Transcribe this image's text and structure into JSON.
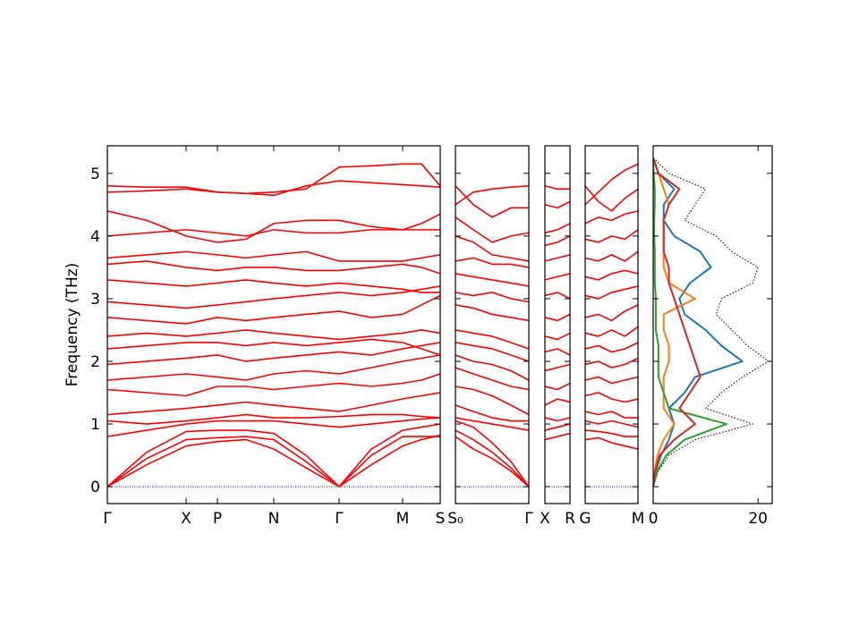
{
  "chart_data": [
    {
      "type": "line",
      "ylabel": "Frequency (THz)",
      "color": "#ff0000",
      "hline": 0,
      "hline_color": "#0000ff",
      "xlim": [
        0,
        3.72
      ],
      "ylim": [
        -0.27,
        5.44
      ],
      "yticks": [
        0,
        1,
        2,
        3,
        4,
        5
      ],
      "show_ytick_labels": true,
      "xticks": [
        {
          "value": 0,
          "label": "Γ"
        },
        {
          "value": 0.88,
          "label": "X"
        },
        {
          "value": 1.23,
          "label": "P"
        },
        {
          "value": 1.86,
          "label": "N"
        },
        {
          "value": 2.59,
          "label": "Γ"
        },
        {
          "value": 3.3,
          "label": "M"
        },
        {
          "value": 3.72,
          "label": "S"
        }
      ],
      "x": [
        0,
        0.44,
        0.88,
        1.23,
        1.55,
        1.86,
        2.22,
        2.59,
        2.95,
        3.3,
        3.51,
        3.72
      ],
      "series": [
        {
          "values": [
            0,
            0.45,
            0.75,
            0.78,
            0.8,
            0.75,
            0.4,
            0,
            0.5,
            0.8,
            0.8,
            0.8
          ]
        },
        {
          "values": [
            0,
            0.35,
            0.65,
            0.72,
            0.75,
            0.6,
            0.3,
            0,
            0.35,
            0.65,
            0.75,
            0.82
          ]
        },
        {
          "values": [
            0,
            0.55,
            0.88,
            0.9,
            0.9,
            0.85,
            0.5,
            0,
            0.6,
            0.9,
            0.95,
            1.0
          ]
        },
        {
          "values": [
            0.8,
            0.9,
            1.0,
            1.05,
            1.05,
            1.05,
            1.0,
            0.95,
            1.0,
            1.05,
            1.08,
            1.1
          ]
        },
        {
          "values": [
            1.05,
            1.0,
            1.05,
            1.1,
            1.15,
            1.1,
            1.1,
            1.12,
            1.15,
            1.15,
            1.12,
            1.1
          ]
        },
        {
          "values": [
            1.15,
            1.2,
            1.25,
            1.3,
            1.35,
            1.3,
            1.25,
            1.2,
            1.3,
            1.4,
            1.45,
            1.5
          ]
        },
        {
          "values": [
            1.55,
            1.5,
            1.45,
            1.6,
            1.6,
            1.55,
            1.6,
            1.65,
            1.6,
            1.65,
            1.7,
            1.8
          ]
        },
        {
          "values": [
            1.7,
            1.75,
            1.8,
            1.75,
            1.7,
            1.8,
            1.85,
            1.8,
            1.9,
            2.0,
            2.05,
            2.1
          ]
        },
        {
          "values": [
            1.95,
            2.0,
            2.05,
            2.1,
            2.0,
            2.05,
            2.1,
            2.15,
            2.1,
            2.2,
            2.25,
            2.3
          ]
        },
        {
          "values": [
            2.2,
            2.25,
            2.3,
            2.3,
            2.25,
            2.3,
            2.25,
            2.3,
            2.35,
            2.3,
            2.2,
            2.1
          ]
        },
        {
          "values": [
            2.4,
            2.45,
            2.4,
            2.45,
            2.5,
            2.45,
            2.4,
            2.35,
            2.4,
            2.45,
            2.5,
            2.45
          ]
        },
        {
          "values": [
            2.7,
            2.65,
            2.6,
            2.7,
            2.65,
            2.7,
            2.75,
            2.8,
            2.7,
            2.75,
            2.9,
            3.05
          ]
        },
        {
          "values": [
            2.95,
            2.9,
            2.85,
            2.9,
            2.95,
            3.0,
            3.05,
            3.1,
            3.05,
            3.1,
            3.15,
            3.2
          ]
        },
        {
          "values": [
            3.3,
            3.25,
            3.2,
            3.25,
            3.3,
            3.25,
            3.2,
            3.25,
            3.2,
            3.15,
            3.1,
            3.1
          ]
        },
        {
          "values": [
            3.55,
            3.6,
            3.5,
            3.45,
            3.5,
            3.5,
            3.45,
            3.45,
            3.5,
            3.55,
            3.5,
            3.4
          ]
        },
        {
          "values": [
            3.65,
            3.7,
            3.75,
            3.7,
            3.65,
            3.7,
            3.75,
            3.6,
            3.6,
            3.6,
            3.65,
            3.7
          ]
        },
        {
          "values": [
            4.0,
            4.05,
            4.1,
            4.05,
            4.0,
            4.1,
            4.05,
            4.05,
            4.1,
            4.1,
            4.2,
            4.35
          ]
        },
        {
          "values": [
            4.4,
            4.25,
            4.0,
            3.9,
            3.95,
            4.2,
            4.25,
            4.25,
            4.15,
            4.1,
            4.1,
            4.1
          ]
        },
        {
          "values": [
            4.7,
            4.72,
            4.75,
            4.7,
            4.68,
            4.65,
            4.8,
            4.88,
            4.85,
            4.82,
            4.8,
            4.78
          ]
        },
        {
          "values": [
            4.8,
            4.78,
            4.78,
            4.7,
            4.68,
            4.7,
            4.75,
            5.1,
            5.12,
            5.15,
            5.15,
            4.8
          ]
        }
      ]
    },
    {
      "type": "line",
      "color": "#ff0000",
      "hline": 0,
      "hline_color": "#0000ff",
      "xlim": [
        0,
        0.82
      ],
      "ylim": [
        -0.27,
        5.44
      ],
      "yticks": [
        0,
        1,
        2,
        3,
        4,
        5
      ],
      "show_ytick_labels": false,
      "xticks": [
        {
          "value": 0,
          "label": "S₀"
        },
        {
          "value": 0.82,
          "label": "Γ"
        }
      ],
      "x": [
        0,
        0.2,
        0.41,
        0.62,
        0.82
      ],
      "series": [
        {
          "values": [
            0.8,
            0.6,
            0.45,
            0.25,
            0
          ]
        },
        {
          "values": [
            0.9,
            0.75,
            0.55,
            0.3,
            0
          ]
        },
        {
          "values": [
            1.05,
            0.95,
            0.7,
            0.4,
            0
          ]
        },
        {
          "values": [
            1.1,
            1.05,
            1.0,
            0.95,
            0.9
          ]
        },
        {
          "values": [
            1.3,
            1.2,
            1.1,
            1.05,
            1.05
          ]
        },
        {
          "values": [
            1.6,
            1.55,
            1.45,
            1.3,
            1.15
          ]
        },
        {
          "values": [
            1.9,
            1.8,
            1.7,
            1.6,
            1.55
          ]
        },
        {
          "values": [
            2.1,
            2.0,
            1.95,
            1.85,
            1.7
          ]
        },
        {
          "values": [
            2.3,
            2.25,
            2.2,
            2.1,
            2.0
          ]
        },
        {
          "values": [
            2.5,
            2.45,
            2.4,
            2.3,
            2.2
          ]
        },
        {
          "values": [
            2.9,
            2.85,
            2.75,
            2.7,
            2.65
          ]
        },
        {
          "values": [
            3.1,
            3.05,
            3.1,
            3.0,
            2.95
          ]
        },
        {
          "values": [
            3.4,
            3.35,
            3.3,
            3.25,
            3.2
          ]
        },
        {
          "values": [
            3.6,
            3.65,
            3.55,
            3.55,
            3.5
          ]
        },
        {
          "values": [
            4.0,
            3.9,
            3.7,
            3.65,
            3.6
          ]
        },
        {
          "values": [
            4.3,
            4.1,
            3.9,
            4.0,
            4.05
          ]
        },
        {
          "values": [
            4.8,
            4.5,
            4.3,
            4.45,
            4.45
          ]
        },
        {
          "values": [
            4.5,
            4.7,
            4.75,
            4.78,
            4.8
          ]
        }
      ]
    },
    {
      "type": "line",
      "color": "#ff0000",
      "hline": 0,
      "hline_color": "#0000ff",
      "xlim": [
        0,
        0.14
      ],
      "ylim": [
        -0.27,
        5.44
      ],
      "yticks": [
        0,
        1,
        2,
        3,
        4,
        5
      ],
      "show_ytick_labels": false,
      "xticks": [
        {
          "value": 0,
          "label": "X"
        },
        {
          "value": 0.14,
          "label": "R"
        }
      ],
      "x": [
        0,
        0.07,
        0.14
      ],
      "series": [
        {
          "values": [
            0.75,
            0.8,
            0.85
          ]
        },
        {
          "values": [
            0.9,
            0.95,
            1.0
          ]
        },
        {
          "values": [
            1.1,
            1.05,
            1.1
          ]
        },
        {
          "values": [
            1.3,
            1.4,
            1.35
          ]
        },
        {
          "values": [
            1.6,
            1.55,
            1.65
          ]
        },
        {
          "values": [
            1.85,
            1.9,
            1.95
          ]
        },
        {
          "values": [
            2.15,
            2.2,
            2.1
          ]
        },
        {
          "values": [
            2.4,
            2.35,
            2.45
          ]
        },
        {
          "values": [
            2.7,
            2.65,
            2.75
          ]
        },
        {
          "values": [
            3.05,
            3.1,
            3.0
          ]
        },
        {
          "values": [
            3.3,
            3.35,
            3.4
          ]
        },
        {
          "values": [
            3.6,
            3.65,
            3.7
          ]
        },
        {
          "values": [
            3.85,
            3.9,
            4.0
          ]
        },
        {
          "values": [
            4.05,
            4.1,
            4.2
          ]
        },
        {
          "values": [
            4.5,
            4.45,
            4.55
          ]
        },
        {
          "values": [
            4.8,
            4.75,
            4.75
          ]
        }
      ]
    },
    {
      "type": "line",
      "color": "#ff0000",
      "hline": 0,
      "hline_color": "#0000ff",
      "xlim": [
        0,
        0.3
      ],
      "ylim": [
        -0.27,
        5.44
      ],
      "yticks": [
        0,
        1,
        2,
        3,
        4,
        5
      ],
      "show_ytick_labels": false,
      "xticks": [
        {
          "value": 0,
          "label": "G"
        },
        {
          "value": 0.3,
          "label": "M"
        }
      ],
      "x": [
        0,
        0.075,
        0.15,
        0.225,
        0.3
      ],
      "series": [
        {
          "values": [
            0.75,
            0.78,
            0.7,
            0.65,
            0.6
          ]
        },
        {
          "values": [
            0.9,
            0.88,
            0.85,
            0.8,
            0.8
          ]
        },
        {
          "values": [
            1.05,
            1.0,
            1.05,
            1.0,
            0.95
          ]
        },
        {
          "values": [
            1.2,
            1.15,
            1.2,
            1.1,
            1.1
          ]
        },
        {
          "values": [
            1.45,
            1.5,
            1.4,
            1.35,
            1.4
          ]
        },
        {
          "values": [
            1.7,
            1.75,
            1.65,
            1.7,
            1.75
          ]
        },
        {
          "values": [
            1.95,
            2.0,
            1.9,
            1.95,
            2.05
          ]
        },
        {
          "values": [
            2.2,
            2.25,
            2.15,
            2.2,
            2.3
          ]
        },
        {
          "values": [
            2.45,
            2.4,
            2.5,
            2.4,
            2.55
          ]
        },
        {
          "values": [
            2.7,
            2.75,
            2.65,
            2.8,
            2.9
          ]
        },
        {
          "values": [
            3.05,
            3.0,
            3.1,
            3.15,
            3.2
          ]
        },
        {
          "values": [
            3.35,
            3.3,
            3.4,
            3.45,
            3.4
          ]
        },
        {
          "values": [
            3.65,
            3.6,
            3.7,
            3.6,
            3.75
          ]
        },
        {
          "values": [
            3.95,
            3.9,
            4.0,
            3.95,
            4.1
          ]
        },
        {
          "values": [
            4.2,
            4.3,
            4.25,
            4.35,
            4.4
          ]
        },
        {
          "values": [
            4.5,
            4.7,
            4.9,
            5.05,
            5.15
          ]
        },
        {
          "values": [
            4.8,
            4.55,
            4.4,
            4.6,
            4.75
          ]
        }
      ]
    },
    {
      "type": "line",
      "orientation": "horizontal",
      "xlim": [
        0,
        22.7
      ],
      "ylim": [
        -0.27,
        5.44
      ],
      "xticks": [
        0,
        20
      ],
      "yticks": [
        0,
        1,
        2,
        3,
        4,
        5
      ],
      "show_ytick_labels": false,
      "y": [
        0,
        0.25,
        0.5,
        0.75,
        1.0,
        1.25,
        1.5,
        1.75,
        2.0,
        2.25,
        2.5,
        2.75,
        3.0,
        3.25,
        3.5,
        3.75,
        4.0,
        4.25,
        4.5,
        4.75,
        5.0,
        5.25
      ],
      "series": [
        {
          "color": "#000000",
          "dash": true,
          "values": [
            0,
            1,
            3,
            8,
            19,
            10,
            13,
            17,
            22,
            18,
            15,
            12,
            13,
            19,
            20,
            15,
            12,
            6,
            8,
            10,
            3,
            0
          ]
        },
        {
          "color": "#1f77b4",
          "values": [
            0,
            0.5,
            1.5,
            3,
            4,
            3,
            6,
            8,
            17,
            13,
            10,
            6,
            5,
            7,
            11,
            9,
            4,
            2,
            2,
            4,
            1,
            0
          ]
        },
        {
          "color": "#ff7f0e",
          "values": [
            0,
            0.3,
            0.8,
            2,
            4,
            2,
            2,
            2,
            3,
            3,
            2,
            2,
            8,
            3,
            2,
            2,
            2,
            2,
            3,
            2,
            1,
            0
          ]
        },
        {
          "color": "#2ca02c",
          "values": [
            0,
            0.8,
            2.5,
            6,
            14,
            3,
            2,
            1,
            1,
            1,
            0.5,
            0.5,
            0.5,
            0.3,
            0.3,
            0.3,
            0.2,
            0.2,
            0.3,
            0.3,
            0.1,
            0
          ]
        },
        {
          "color": "#d62728",
          "values": [
            0,
            0.4,
            1.2,
            4,
            8,
            5,
            7,
            9,
            8,
            7,
            6,
            5,
            4,
            3,
            3,
            2,
            2,
            2,
            3,
            5,
            1,
            0
          ]
        }
      ]
    }
  ]
}
